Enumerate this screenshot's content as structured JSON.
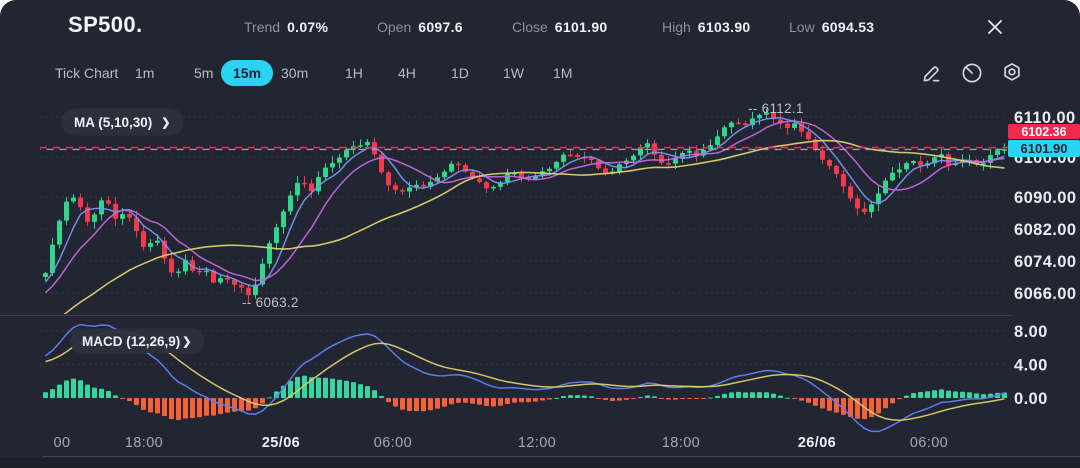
{
  "window": {
    "title": "SP500."
  },
  "header": {
    "stats": [
      {
        "label": "Trend",
        "value": "0.07%"
      },
      {
        "label": "Open",
        "value": "6097.6"
      },
      {
        "label": "Close",
        "value": "6101.90"
      },
      {
        "label": "High",
        "value": "6103.90"
      },
      {
        "label": "Low",
        "value": "6094.53"
      }
    ]
  },
  "toolbar": {
    "items": [
      "Tick Chart",
      "1m",
      "5m",
      "15m",
      "30m",
      "1H",
      "4H",
      "1D",
      "1W",
      "1M"
    ],
    "active": "15m",
    "icons": [
      "pencil-icon",
      "timer-icon",
      "gear-icon"
    ]
  },
  "indicators": {
    "ma": {
      "label": "MA (5,10,30)",
      "chevron": "❯",
      "periods": [
        5,
        10,
        30
      ],
      "colors": {
        "ma5": "#7c90f2",
        "ma10": "#c468dd",
        "ma30": "#ddcf6e"
      }
    },
    "macd": {
      "label": "MACD (12,26,9)",
      "chevron": "❯",
      "fast": 12,
      "slow": 26,
      "signal": 9,
      "colors": {
        "macd": "#5f82f2",
        "signal": "#ddcf6e",
        "hist_up": "#35d6a0",
        "hist_down": "#f2613a"
      }
    }
  },
  "chart_data": {
    "type": "candlestick",
    "symbol": "SP500.",
    "timeframe": "15m",
    "candle_count": 138,
    "price_path": [
      [
        0,
        6071
      ],
      [
        0.008,
        6078
      ],
      [
        0.017,
        6086
      ],
      [
        0.025,
        6091
      ],
      [
        0.033,
        6088
      ],
      [
        0.046,
        6083
      ],
      [
        0.054,
        6088
      ],
      [
        0.062,
        6090
      ],
      [
        0.072,
        6085
      ],
      [
        0.083,
        6087
      ],
      [
        0.093,
        6082
      ],
      [
        0.104,
        6077
      ],
      [
        0.114,
        6080
      ],
      [
        0.124,
        6074
      ],
      [
        0.135,
        6070
      ],
      [
        0.145,
        6074
      ],
      [
        0.155,
        6071
      ],
      [
        0.166,
        6073
      ],
      [
        0.176,
        6068
      ],
      [
        0.186,
        6071
      ],
      [
        0.197,
        6068
      ],
      [
        0.213,
        6065
      ],
      [
        0.222,
        6070
      ],
      [
        0.234,
        6078
      ],
      [
        0.246,
        6086
      ],
      [
        0.259,
        6092
      ],
      [
        0.267,
        6095
      ],
      [
        0.277,
        6092
      ],
      [
        0.288,
        6096
      ],
      [
        0.3,
        6099
      ],
      [
        0.314,
        6101
      ],
      [
        0.327,
        6103
      ],
      [
        0.337,
        6104
      ],
      [
        0.348,
        6097
      ],
      [
        0.36,
        6093
      ],
      [
        0.373,
        6091
      ],
      [
        0.385,
        6094
      ],
      [
        0.397,
        6092
      ],
      [
        0.41,
        6095
      ],
      [
        0.422,
        6098
      ],
      [
        0.435,
        6097
      ],
      [
        0.447,
        6095
      ],
      [
        0.46,
        6092
      ],
      [
        0.472,
        6094
      ],
      [
        0.484,
        6096
      ],
      [
        0.497,
        6095
      ],
      [
        0.509,
        6094
      ],
      [
        0.524,
        6097
      ],
      [
        0.538,
        6100
      ],
      [
        0.553,
        6101
      ],
      [
        0.565,
        6100
      ],
      [
        0.578,
        6097
      ],
      [
        0.59,
        6096
      ],
      [
        0.602,
        6098
      ],
      [
        0.615,
        6101
      ],
      [
        0.627,
        6103
      ],
      [
        0.638,
        6100
      ],
      [
        0.648,
        6098
      ],
      [
        0.658,
        6100
      ],
      [
        0.669,
        6103
      ],
      [
        0.679,
        6100
      ],
      [
        0.689,
        6102
      ],
      [
        0.7,
        6105
      ],
      [
        0.71,
        6107
      ],
      [
        0.72,
        6109
      ],
      [
        0.731,
        6108
      ],
      [
        0.741,
        6110
      ],
      [
        0.752,
        6112
      ],
      [
        0.762,
        6109
      ],
      [
        0.772,
        6107
      ],
      [
        0.781,
        6109
      ],
      [
        0.791,
        6105
      ],
      [
        0.801,
        6102
      ],
      [
        0.812,
        6099
      ],
      [
        0.822,
        6096
      ],
      [
        0.832,
        6093
      ],
      [
        0.843,
        6089
      ],
      [
        0.851,
        6085
      ],
      [
        0.859,
        6088
      ],
      [
        0.87,
        6092
      ],
      [
        0.88,
        6095
      ],
      [
        0.89,
        6097
      ],
      [
        0.901,
        6099
      ],
      [
        0.911,
        6097
      ],
      [
        0.921,
        6099
      ],
      [
        0.932,
        6101
      ],
      [
        0.942,
        6098
      ],
      [
        0.952,
        6100
      ],
      [
        0.963,
        6099
      ],
      [
        0.973,
        6098
      ],
      [
        0.983,
        6100
      ],
      [
        0.994,
        6101
      ],
      [
        1,
        6101.9
      ]
    ],
    "key_points": {
      "session_high": 6112.1,
      "session_low": 6063.2,
      "last_close": 6101.9,
      "reference_price": 6102.36
    },
    "price_axis": {
      "ticks": [
        {
          "label": "6110.00",
          "value": 6110
        },
        {
          "label": "6100.00",
          "value": 6100
        },
        {
          "label": "6090.00",
          "value": 6090
        },
        {
          "label": "6082.00",
          "value": 6082
        },
        {
          "label": "6074.00",
          "value": 6074
        },
        {
          "label": "6066.00",
          "value": 6066
        }
      ]
    },
    "macd_axis": {
      "ticks": [
        {
          "label": "8.00",
          "value": 8
        },
        {
          "label": "4.00",
          "value": 4
        },
        {
          "label": "0.00",
          "value": 0
        }
      ]
    },
    "time_axis": [
      {
        "label": "00",
        "f": 0.0207,
        "strong": false
      },
      {
        "label": "18:00",
        "f": 0.1056,
        "strong": false
      },
      {
        "label": "25/06",
        "f": 0.2474,
        "strong": true
      },
      {
        "label": "06:00",
        "f": 0.3633,
        "strong": false
      },
      {
        "label": "12:00",
        "f": 0.5124,
        "strong": false
      },
      {
        "label": "18:00",
        "f": 0.6615,
        "strong": false
      },
      {
        "label": "26/06",
        "f": 0.8023,
        "strong": true
      },
      {
        "label": "06:00",
        "f": 0.9182,
        "strong": false
      }
    ],
    "annotations": [
      {
        "id": "high",
        "text": "-- 6112.1"
      },
      {
        "id": "low",
        "text": "-- 6063.2"
      }
    ],
    "reference_lines": [
      {
        "value": 6102.36,
        "color": "#f2294e",
        "style": "dashed"
      },
      {
        "value": 6101.9,
        "color": "#93a0b4",
        "style": "dashed"
      }
    ],
    "badges": [
      {
        "id": "ref",
        "text": "6102.36",
        "bg": "#f2294e",
        "fg": "#ffffff"
      },
      {
        "id": "last",
        "text": "6101.90",
        "bg": "#2bd4f4",
        "fg": "#0b2433"
      }
    ],
    "colors": {
      "up": "#2fd68c",
      "down": "#f23a4c",
      "grid": "#5a6175",
      "background": "#222532"
    }
  }
}
